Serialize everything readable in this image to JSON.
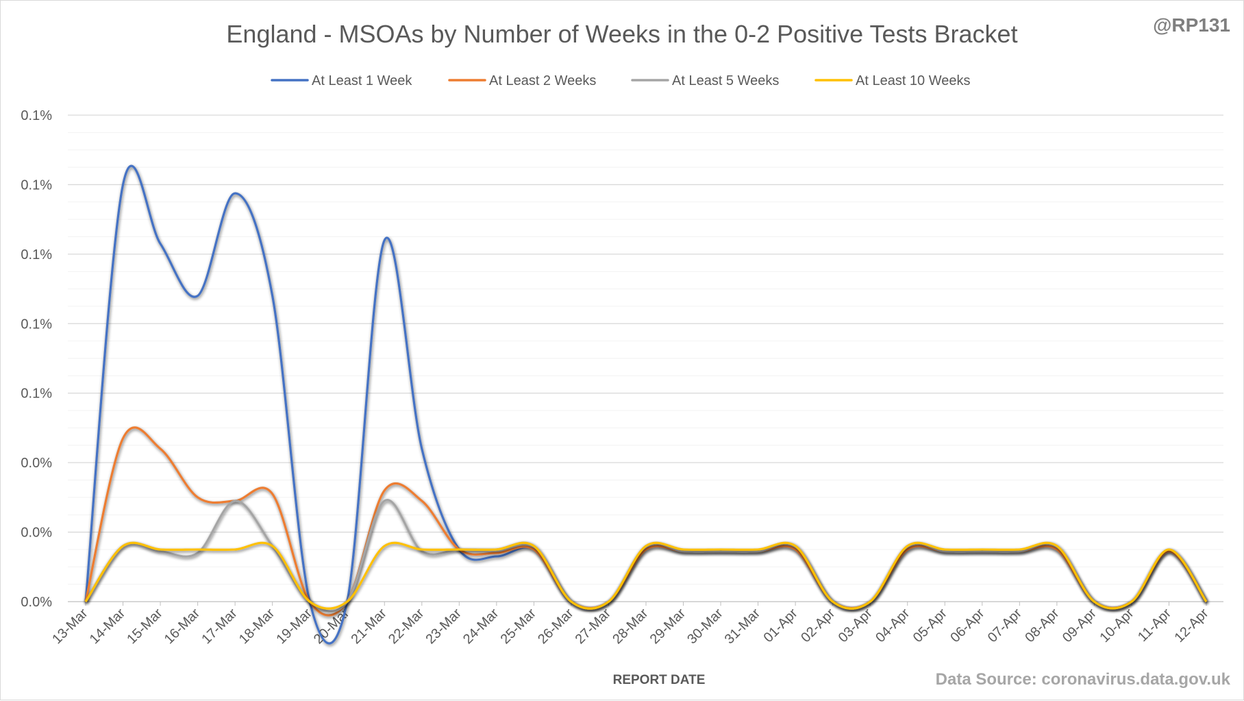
{
  "handle": "@RP131",
  "source": "Data Source: coronavirus.data.gov.uk",
  "chart_data": {
    "type": "line",
    "title": "England - MSOAs by Number of Weeks in the 0-2 Positive Tests Bracket",
    "xlabel": "REPORT DATE",
    "ylabel": "",
    "ylim": [
      0,
      0.14
    ],
    "yticks": [
      0,
      0.02,
      0.04,
      0.06,
      0.08,
      0.1,
      0.12,
      0.14
    ],
    "ytick_labels": [
      "0.0%",
      "0.0%",
      "0.0%",
      "0.1%",
      "0.1%",
      "0.1%",
      "0.1%",
      "0.1%"
    ],
    "grid": true,
    "legend": "top",
    "categories": [
      "13-Mar",
      "14-Mar",
      "15-Mar",
      "16-Mar",
      "17-Mar",
      "18-Mar",
      "19-Mar",
      "20-Mar",
      "21-Mar",
      "22-Mar",
      "23-Mar",
      "24-Mar",
      "25-Mar",
      "26-Mar",
      "27-Mar",
      "28-Mar",
      "29-Mar",
      "30-Mar",
      "31-Mar",
      "01-Apr",
      "02-Apr",
      "03-Apr",
      "04-Apr",
      "05-Apr",
      "06-Apr",
      "07-Apr",
      "08-Apr",
      "09-Apr",
      "10-Apr",
      "11-Apr",
      "12-Apr"
    ],
    "series": [
      {
        "name": "At Least 1 Week",
        "color": "#4472c4",
        "values": [
          0,
          0.12,
          0.103,
          0.088,
          0.1175,
          0.088,
          0,
          0,
          0.104,
          0.044,
          0.015,
          0.013,
          0.015,
          0,
          0,
          0.015,
          0.0145,
          0.0145,
          0.0145,
          0.015,
          0,
          0,
          0.015,
          0.0145,
          0.0145,
          0.0145,
          0.015,
          0,
          0,
          0.0145,
          0
        ]
      },
      {
        "name": "At Least 2 Weeks",
        "color": "#ed7d31",
        "values": [
          0,
          0.047,
          0.044,
          0.03,
          0.029,
          0.031,
          0,
          0,
          0.032,
          0.029,
          0.015,
          0.014,
          0.015,
          0,
          0,
          0.015,
          0.0145,
          0.0145,
          0.0145,
          0.015,
          0,
          0,
          0.015,
          0.0145,
          0.0145,
          0.0145,
          0.015,
          0,
          0,
          0.0145,
          0
        ]
      },
      {
        "name": "At Least 5 Weeks",
        "color": "#a5a5a5",
        "values": [
          0,
          0.016,
          0.0145,
          0.014,
          0.029,
          0.016,
          0,
          0,
          0.029,
          0.0145,
          0.015,
          0.015,
          0.016,
          0,
          0,
          0.016,
          0.0145,
          0.0145,
          0.0145,
          0.016,
          0,
          0,
          0.016,
          0.0145,
          0.0145,
          0.0145,
          0.016,
          0,
          0,
          0.015,
          0
        ]
      },
      {
        "name": "At Least 10 Weeks",
        "color": "#ffc000",
        "values": [
          0,
          0.016,
          0.015,
          0.015,
          0.015,
          0.016,
          0,
          0,
          0.016,
          0.015,
          0.015,
          0.015,
          0.016,
          0,
          0,
          0.016,
          0.015,
          0.015,
          0.015,
          0.016,
          0,
          0,
          0.016,
          0.015,
          0.015,
          0.015,
          0.016,
          0,
          0,
          0.015,
          0
        ]
      }
    ]
  }
}
